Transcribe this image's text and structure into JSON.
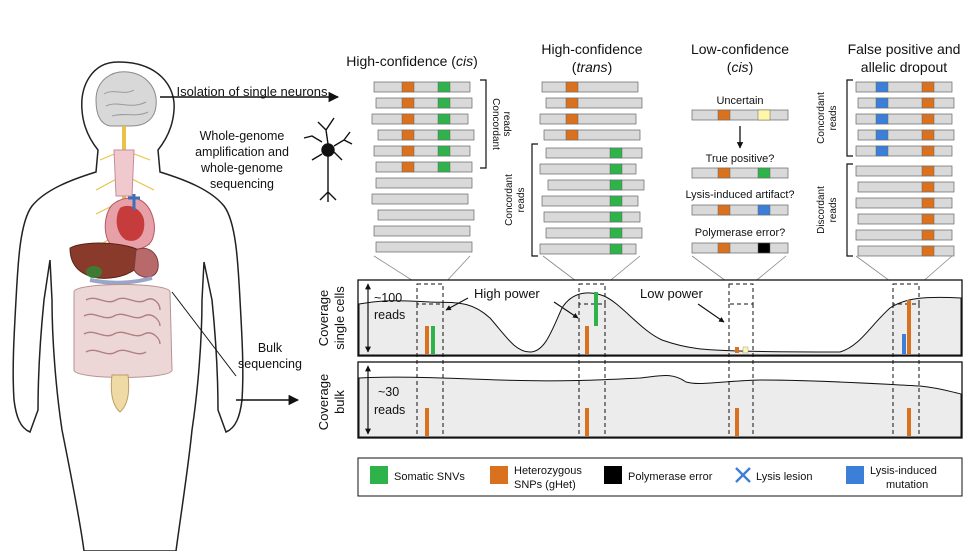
{
  "left": {
    "isolation": "Isolation of single neurons",
    "wga": [
      "Whole-genome",
      "amplification and",
      "whole-genome",
      "sequencing"
    ],
    "bulk": [
      "Bulk",
      "sequencing"
    ]
  },
  "panels": {
    "hc_cis": {
      "title_a": "High-confidence (",
      "title_em": "cis",
      "title_b": ")",
      "side_a": "Concordant",
      "side_b": "reads"
    },
    "hc_trans": {
      "title_a": "High-confidence",
      "title_paren_open": "(",
      "title_em": "trans",
      "title_paren_close": ")",
      "side_a": "Concordant",
      "side_b": "reads"
    },
    "lc_cis": {
      "title_a": "Low-confidence",
      "title_paren_open": "(",
      "title_em": "cis",
      "title_paren_close": ")",
      "uncertain": "Uncertain",
      "true_positive": "True positive?",
      "lysis_artifact": "Lysis-induced artifact?",
      "polymerase": "Polymerase error?"
    },
    "fp": {
      "title_a": "False positive and",
      "title_b": "allelic dropout",
      "concordant_a": "Concordant",
      "concordant_b": "reads",
      "discordant_a": "Discordant",
      "discordant_b": "reads"
    }
  },
  "tracks": {
    "single": {
      "ylabel_a": "Coverage",
      "ylabel_b": "single cells",
      "reads_a": "~100",
      "reads_b": "reads",
      "high_power": "High power",
      "low_power": "Low power"
    },
    "bulk": {
      "ylabel_a": "Coverage",
      "ylabel_b": "bulk",
      "reads_a": "~30",
      "reads_b": "reads"
    }
  },
  "legend": {
    "somatic": "Somatic SNVs",
    "het_a": "Heterozygous",
    "het_b": "SNPs (gHet)",
    "polymerase": "Polymerase error",
    "lysis_lesion": "Lysis lesion",
    "lysis_mut_a": "Lysis-induced",
    "lysis_mut_b": "mutation"
  },
  "colors": {
    "green": "#2db34a",
    "orange": "#d9711f",
    "black": "#000000",
    "blue": "#3b7fd9",
    "yellow": "#fff6a8",
    "read_fill": "#d9d9d9",
    "coverage_fill": "#ececec"
  },
  "icons": [
    "human-anatomy-figure",
    "neuron-icon",
    "x-mark-icon"
  ]
}
